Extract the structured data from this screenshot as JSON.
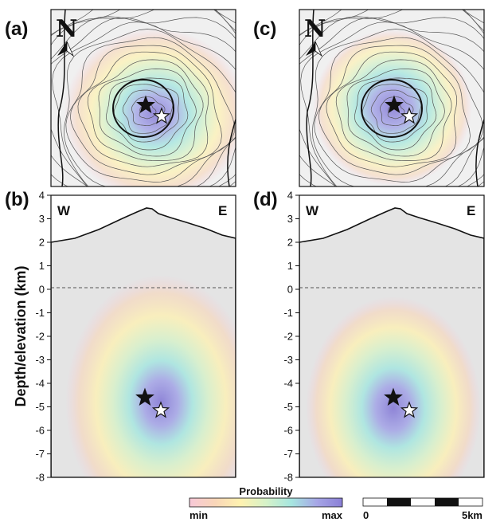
{
  "panels": {
    "a": "(a)",
    "b": "(b)",
    "c": "(c)",
    "d": "(d)"
  },
  "north_label": "N",
  "section": {
    "west": "W",
    "east": "E",
    "y_axis_label": "Depth/elevation (km)",
    "y_ticks": [
      "4",
      "3",
      "2",
      "1",
      "0",
      "-1",
      "-2",
      "-3",
      "-4",
      "-5",
      "-6",
      "-7",
      "-8"
    ]
  },
  "legend": {
    "title": "Probability",
    "min": "min",
    "max": "max",
    "colors": [
      "#f7c8d8",
      "#f9d6b8",
      "#fff2b0",
      "#d6f2c8",
      "#a6e6e0",
      "#a6a6e6",
      "#8a7fd6"
    ]
  },
  "scale_bar": {
    "start": "0",
    "end": "5km"
  },
  "colors": {
    "surface_fill": "#e4e4e4",
    "map_background": "#f0f0f0",
    "contour": "#555555"
  }
}
